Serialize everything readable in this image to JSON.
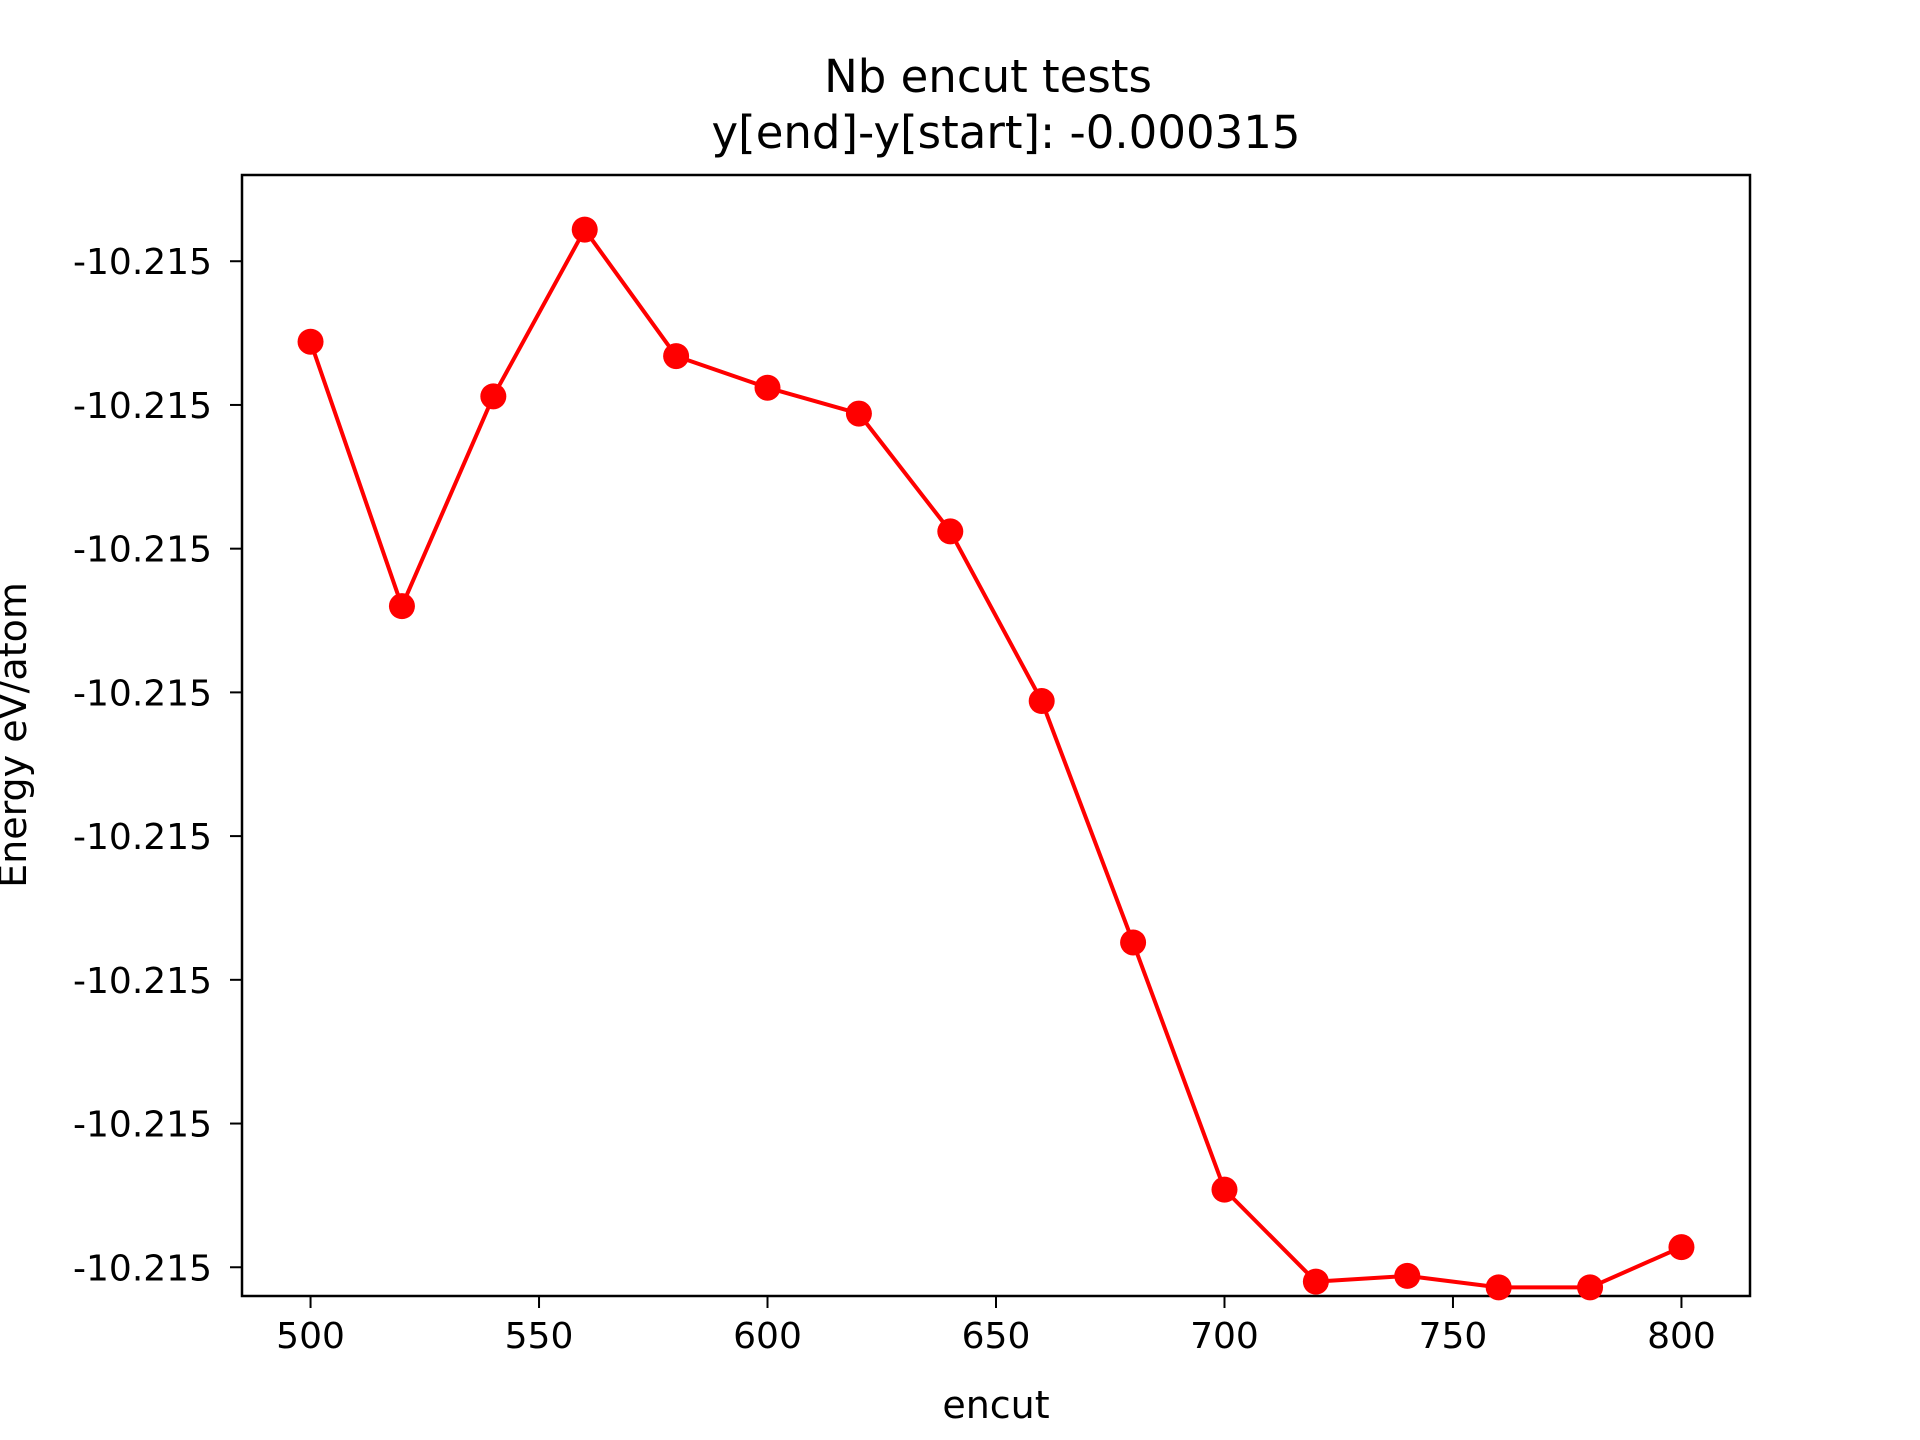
{
  "chart_data": {
    "type": "line",
    "title": "Nb encut tests",
    "subtitle": "y[end]-y[start]:  -0.000315",
    "xlabel": "encut",
    "ylabel": "Energy eV/atom",
    "xlim": [
      485,
      815
    ],
    "ylim": [
      -10.21518,
      -10.21479
    ],
    "xticks": [
      {
        "value": 500,
        "label": "500"
      },
      {
        "value": 550,
        "label": "550"
      },
      {
        "value": 600,
        "label": "600"
      },
      {
        "value": 650,
        "label": "650"
      },
      {
        "value": 700,
        "label": "700"
      },
      {
        "value": 750,
        "label": "750"
      },
      {
        "value": 800,
        "label": "800"
      }
    ],
    "yticks": [
      {
        "value": -10.21482,
        "label": "-10.215"
      },
      {
        "value": -10.21487,
        "label": "-10.215"
      },
      {
        "value": -10.21492,
        "label": "-10.215"
      },
      {
        "value": -10.21497,
        "label": "-10.215"
      },
      {
        "value": -10.21502,
        "label": "-10.215"
      },
      {
        "value": -10.21507,
        "label": "-10.215"
      },
      {
        "value": -10.21512,
        "label": "-10.215"
      },
      {
        "value": -10.21517,
        "label": "-10.215"
      }
    ],
    "grid": false,
    "legend": "none",
    "color": "#ff0000",
    "series": [
      {
        "x": [
          500,
          520,
          540,
          560,
          580,
          600,
          620,
          640,
          660,
          680,
          700,
          720,
          740,
          760,
          780,
          800
        ],
        "y": [
          -10.214848,
          -10.21494,
          -10.214867,
          -10.214809,
          -10.214853,
          -10.214864,
          -10.214873,
          -10.214914,
          -10.214973,
          -10.215057,
          -10.215143,
          -10.215175,
          -10.215173,
          -10.215177,
          -10.215177,
          -10.215163
        ]
      }
    ]
  }
}
